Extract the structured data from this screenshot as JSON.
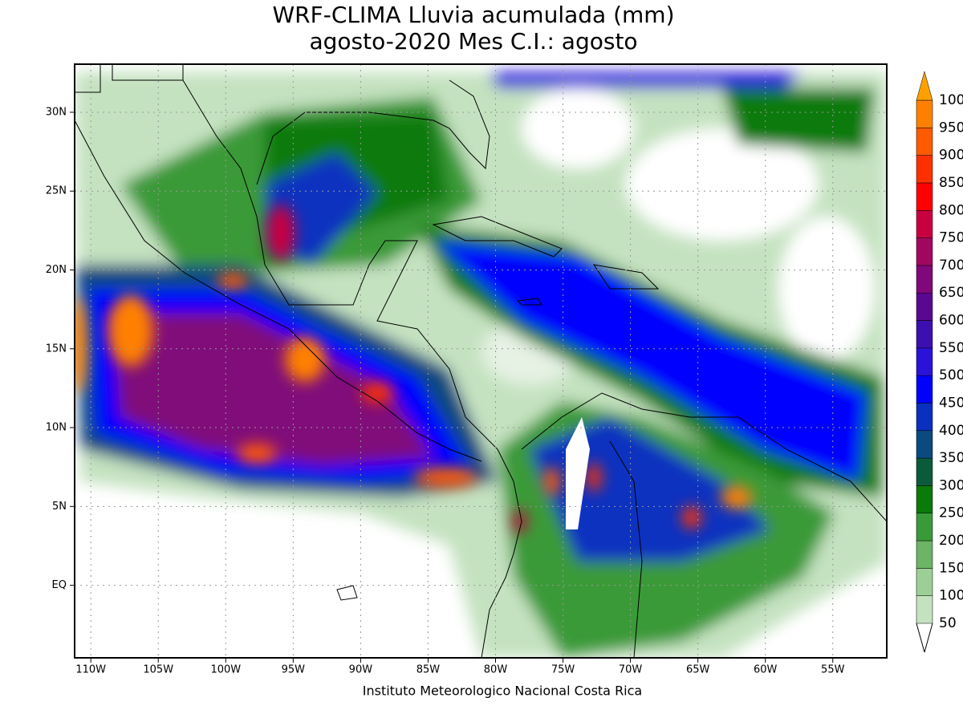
{
  "map": {
    "title": [
      "WRF-CLIMA Lluvia acumulada (mm)",
      "agosto-2020 Mes C.I.: agosto"
    ],
    "footer": "Instituto Meteorologico Nacional Costa Rica",
    "xlim": [
      -111.2,
      -51
    ],
    "ylim": [
      -4.6,
      33.05
    ],
    "xticks": [
      {
        "value": -110,
        "label": "110W"
      },
      {
        "value": -105,
        "label": "105W"
      },
      {
        "value": -100,
        "label": "100W"
      },
      {
        "value": -95,
        "label": "95W"
      },
      {
        "value": -90,
        "label": "90W"
      },
      {
        "value": -85,
        "label": "85W"
      },
      {
        "value": -80,
        "label": "80W"
      },
      {
        "value": -75,
        "label": "75W"
      },
      {
        "value": -70,
        "label": "70W"
      },
      {
        "value": -65,
        "label": "65W"
      },
      {
        "value": -60,
        "label": "60W"
      },
      {
        "value": -55,
        "label": "55W"
      }
    ],
    "yticks": [
      {
        "value": 0,
        "label": "EQ"
      },
      {
        "value": 5,
        "label": "5N"
      },
      {
        "value": 10,
        "label": "10N"
      },
      {
        "value": 15,
        "label": "15N"
      },
      {
        "value": 20,
        "label": "20N"
      },
      {
        "value": 25,
        "label": "25N"
      },
      {
        "value": 30,
        "label": "30N"
      }
    ],
    "grid": true,
    "colorbar": {
      "levels": [
        50,
        100,
        150,
        200,
        250,
        300,
        350,
        400,
        450,
        500,
        550,
        600,
        650,
        700,
        750,
        800,
        850,
        900,
        950,
        1000
      ],
      "colors": [
        "#c4e2c0",
        "#9ccf96",
        "#6cb466",
        "#3a9a38",
        "#0a7a0a",
        "#0b5a3c",
        "#0a4a80",
        "#0a30c0",
        "#0000ff",
        "#2a12d8",
        "#3c10b0",
        "#5a0890",
        "#80087a",
        "#a00860",
        "#c80040",
        "#ff0000",
        "#ff3000",
        "#ff5a00",
        "#ff8000"
      ],
      "over_color": "#ffa000"
    }
  }
}
